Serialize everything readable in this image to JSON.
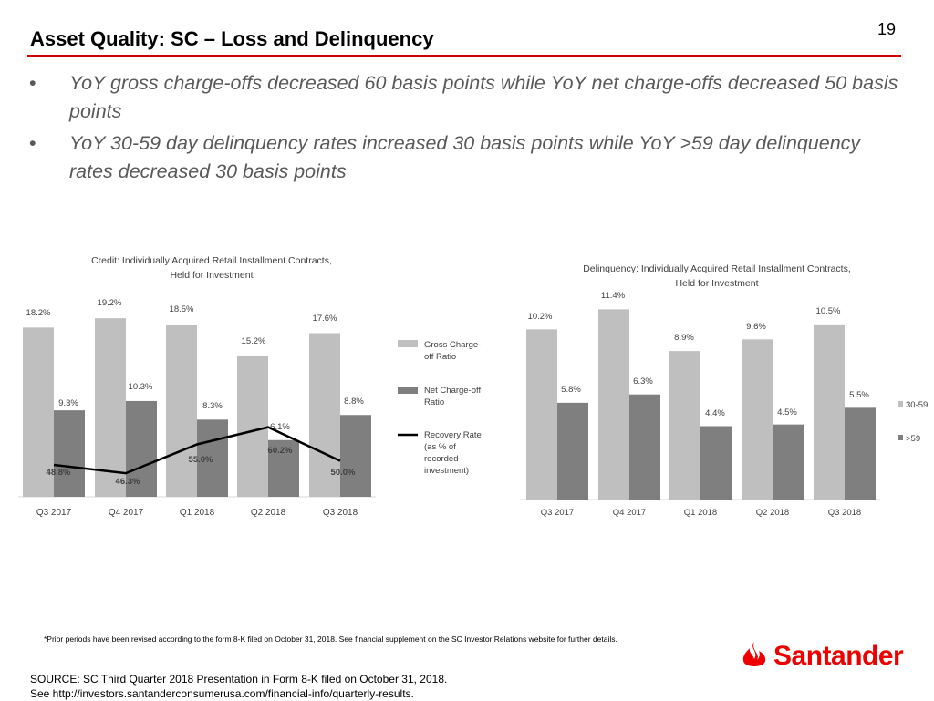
{
  "header": {
    "title": "Asset Quality:  SC – Loss and Delinquency",
    "page_number": "19"
  },
  "bullets": [
    {
      "marker": "•",
      "text": "YoY gross charge-offs decreased 60 basis points while YoY net charge-offs decreased 50 basis points"
    },
    {
      "marker": "•",
      "text": "YoY 30-59 day delinquency rates increased 30 basis points while YoY >59 day delinquency rates decreased 30 basis points"
    }
  ],
  "colors": {
    "accent": "#cc0000",
    "brand_red": "#ec0000",
    "light_bar": "#bfbfbf",
    "dark_bar": "#7f7f7f",
    "line": "#000000"
  },
  "chart_data": [
    {
      "type": "bar",
      "title": "Credit: Individually Acquired Retail Installment Contracts, Held for Investment",
      "categories": [
        "Q3 2017",
        "Q4 2017",
        "Q1 2018",
        "Q2 2018",
        "Q3 2018"
      ],
      "series": [
        {
          "name": "Gross Charge-off Ratio",
          "kind": "bar",
          "values": [
            18.2,
            19.2,
            18.5,
            15.2,
            17.6
          ],
          "labels": [
            "18.2%",
            "19.2%",
            "18.5%",
            "15.2%",
            "17.6%"
          ]
        },
        {
          "name": "Net Charge-off Ratio",
          "kind": "bar",
          "values": [
            9.3,
            10.3,
            8.3,
            6.1,
            8.8
          ],
          "labels": [
            "9.3%",
            "10.3%",
            "8.3%",
            "6.1%",
            "8.8%"
          ]
        },
        {
          "name": "Recovery Rate (as % of recorded investment)",
          "kind": "line",
          "values": [
            48.8,
            46.3,
            55.0,
            60.2,
            50.0
          ],
          "labels": [
            "48.8%",
            "46.3%",
            "55.0%",
            "60.2%",
            "50.0%"
          ]
        }
      ],
      "legend": [
        {
          "lines": [
            "Gross Charge-",
            "off Ratio"
          ]
        },
        {
          "lines": [
            "Net Charge-off",
            "Ratio"
          ]
        },
        {
          "lines": [
            "Recovery Rate",
            "(as % of",
            "recorded",
            "investment)"
          ]
        }
      ],
      "legend_position": "right",
      "grid": false
    },
    {
      "type": "bar",
      "title": "Delinquency: Individually Acquired Retail Installment Contracts, Held for Investment",
      "categories": [
        "Q3 2017",
        "Q4 2017",
        "Q1 2018",
        "Q2 2018",
        "Q3 2018"
      ],
      "series": [
        {
          "name": "30-59",
          "values": [
            10.2,
            11.4,
            8.9,
            9.6,
            10.5
          ],
          "labels": [
            "10.2%",
            "11.4%",
            "8.9%",
            "9.6%",
            "10.5%"
          ]
        },
        {
          "name": ">59",
          "values": [
            5.8,
            6.3,
            4.4,
            4.5,
            5.5
          ],
          "labels": [
            "5.8%",
            "6.3%",
            "4.4%",
            "4.5%",
            "5.5%"
          ]
        }
      ],
      "legend_position": "right",
      "grid": false
    }
  ],
  "footnote": "*Prior periods have been revised according to the form 8-K filed on October 31, 2018. See financial supplement on the SC Investor Relations website for further details.",
  "source": {
    "line1": "SOURCE:  SC Third Quarter 2018 Presentation in Form 8-K filed on October 31, 2018.",
    "line2": "See http://investors.santanderconsumerusa.com/financial-info/quarterly-results."
  },
  "logo": {
    "text": "Santander",
    "icon": "flame-icon"
  }
}
